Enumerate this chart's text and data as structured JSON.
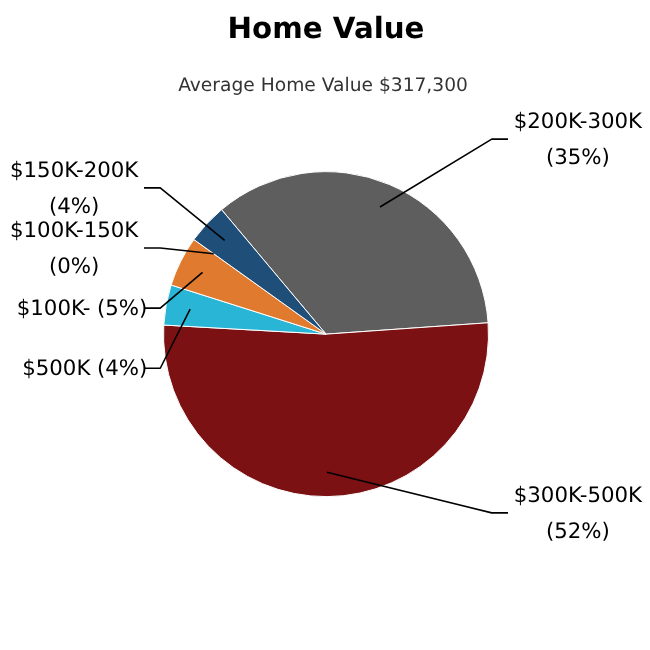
{
  "chart_data": {
    "type": "pie",
    "title": "Home Value",
    "subtitle": "Average Home Value  $317,300",
    "categories": [
      "$200K-300K",
      "$300K-500K",
      "$500K",
      "$100K-",
      "$100K-150K",
      "$150K-200K"
    ],
    "values": [
      35,
      52,
      4,
      5,
      0,
      4
    ],
    "colors": [
      "#5e5e5e",
      "#7b1113",
      "#29b5d6",
      "#e07a2e",
      "#8a8a8a",
      "#1f4e79"
    ],
    "value_labels": [
      "(35%)",
      "(52%)",
      "(4%)",
      "(5%)",
      "(0%)",
      "(4%)"
    ]
  }
}
